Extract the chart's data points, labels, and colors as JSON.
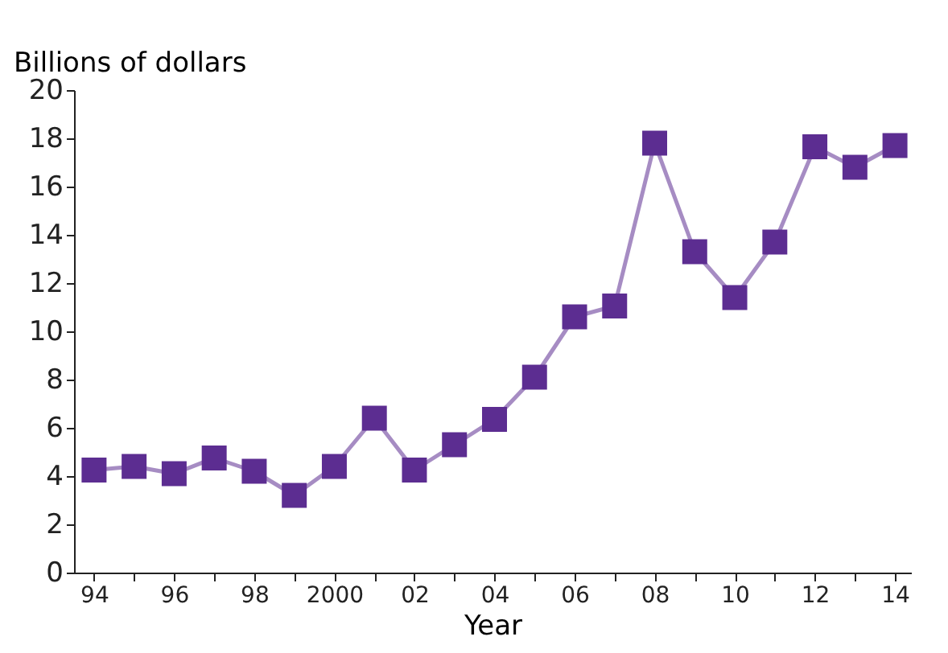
{
  "chart_data": {
    "type": "line",
    "ylabel": "Billions of dollars",
    "xlabel": "Year",
    "x": [
      1994,
      1995,
      1996,
      1997,
      1998,
      1999,
      2000,
      2001,
      2002,
      2003,
      2004,
      2005,
      2006,
      2007,
      2008,
      2009,
      2010,
      2011,
      2012,
      2013,
      2014
    ],
    "series": [
      {
        "color": "#5c2d91",
        "values": [
          4.25,
          4.4,
          4.1,
          4.75,
          4.2,
          3.2,
          4.4,
          6.4,
          4.25,
          5.3,
          6.35,
          8.1,
          10.6,
          11.05,
          17.8,
          13.3,
          11.4,
          13.7,
          17.65,
          16.8,
          17.7
        ]
      }
    ],
    "xlim": [
      1993.5,
      2014.4
    ],
    "xticks": [
      {
        "value": 1994,
        "label": "94"
      },
      {
        "value": 1995,
        "label": null
      },
      {
        "value": 1996,
        "label": "96"
      },
      {
        "value": 1997,
        "label": null
      },
      {
        "value": 1998,
        "label": "98"
      },
      {
        "value": 1999,
        "label": null
      },
      2000,
      {
        "value": 2001,
        "label": null
      },
      {
        "value": 2002,
        "label": "02"
      },
      {
        "value": 2003,
        "label": null
      },
      {
        "value": 2004,
        "label": "04"
      },
      {
        "value": 2005,
        "label": null
      },
      {
        "value": 2006,
        "label": "06"
      },
      {
        "value": 2007,
        "label": null
      },
      {
        "value": 2008,
        "label": "08"
      },
      {
        "value": 2009,
        "label": null
      },
      {
        "value": 2010,
        "label": "10"
      },
      {
        "value": 2011,
        "label": null
      },
      {
        "value": 2012,
        "label": "12"
      },
      {
        "value": 2013,
        "label": null
      },
      {
        "value": 2014,
        "label": "14"
      }
    ],
    "ylim": [
      0,
      20
    ],
    "yticks": [
      0,
      2,
      4,
      6,
      8,
      10,
      12,
      14,
      16,
      18,
      20
    ],
    "grid": false,
    "marker": "square",
    "line_style": "solid"
  }
}
